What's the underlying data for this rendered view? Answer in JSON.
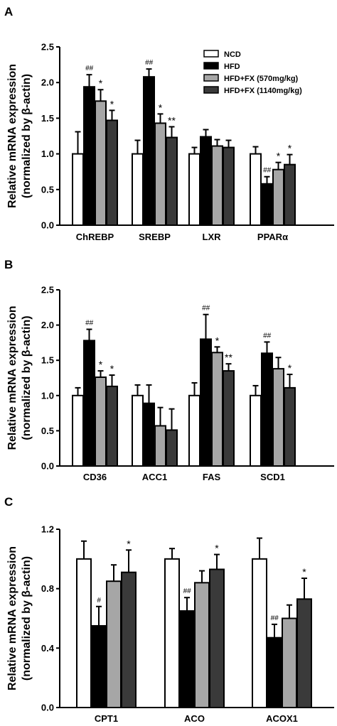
{
  "legend": [
    {
      "name": "NCD",
      "color": "#ffffff"
    },
    {
      "name": "HFD",
      "color": "#000000"
    },
    {
      "name": "HFD+FX (570mg/kg)",
      "color": "#a6a6a6"
    },
    {
      "name": "HFD+FX (1140mg/kg)",
      "color": "#3a3a3a"
    }
  ],
  "ylabel_line1": "Relative mRNA expression",
  "ylabel_line2": "(normalized by β-actin)",
  "chart_data": [
    {
      "panel": "A",
      "type": "bar",
      "categories": [
        "ChREBP",
        "SREBP",
        "LXR",
        "PPARα"
      ],
      "ylim": [
        0,
        2.5
      ],
      "yticks": [
        "0.0",
        "0.5",
        "1.0",
        "1.5",
        "2.0",
        "2.5"
      ],
      "ytick_values": [
        0,
        0.5,
        1.0,
        1.5,
        2.0,
        2.5
      ],
      "series": [
        {
          "name": "NCD",
          "values": [
            1.0,
            1.0,
            1.0,
            1.0
          ],
          "errors": [
            0.31,
            0.19,
            0.09,
            0.1
          ],
          "labels": [
            "",
            "",
            "",
            ""
          ]
        },
        {
          "name": "HFD",
          "values": [
            1.94,
            2.08,
            1.24,
            0.58
          ],
          "errors": [
            0.17,
            0.11,
            0.1,
            0.1
          ],
          "labels": [
            "##",
            "##",
            "",
            "##"
          ]
        },
        {
          "name": "HFD+FX (570mg/kg)",
          "values": [
            1.74,
            1.43,
            1.11,
            0.78
          ],
          "errors": [
            0.16,
            0.13,
            0.09,
            0.1
          ],
          "labels": [
            "*",
            "*",
            "",
            "*"
          ]
        },
        {
          "name": "HFD+FX (1140mg/kg)",
          "values": [
            1.47,
            1.23,
            1.09,
            0.85
          ],
          "errors": [
            0.14,
            0.15,
            0.1,
            0.14
          ],
          "labels": [
            "*",
            "**",
            "",
            "*"
          ]
        }
      ],
      "legend_position": "top-right"
    },
    {
      "panel": "B",
      "type": "bar",
      "categories": [
        "CD36",
        "ACC1",
        "FAS",
        "SCD1"
      ],
      "ylim": [
        0,
        2.5
      ],
      "yticks": [
        "0.0",
        "0.5",
        "1.0",
        "1.5",
        "2.0",
        "2.5"
      ],
      "ytick_values": [
        0,
        0.5,
        1.0,
        1.5,
        2.0,
        2.5
      ],
      "series": [
        {
          "name": "NCD",
          "values": [
            1.0,
            1.0,
            1.0,
            1.0
          ],
          "errors": [
            0.11,
            0.15,
            0.18,
            0.14
          ],
          "labels": [
            "",
            "",
            "",
            ""
          ]
        },
        {
          "name": "HFD",
          "values": [
            1.78,
            0.89,
            1.8,
            1.6
          ],
          "errors": [
            0.16,
            0.26,
            0.35,
            0.16
          ],
          "labels": [
            "##",
            "",
            "##",
            "##"
          ]
        },
        {
          "name": "HFD+FX (570mg/kg)",
          "values": [
            1.26,
            0.57,
            1.61,
            1.38
          ],
          "errors": [
            0.09,
            0.26,
            0.08,
            0.16
          ],
          "labels": [
            "*",
            "",
            "*",
            ""
          ]
        },
        {
          "name": "HFD+FX (1140mg/kg)",
          "values": [
            1.13,
            0.51,
            1.35,
            1.11
          ],
          "errors": [
            0.16,
            0.3,
            0.1,
            0.19
          ],
          "labels": [
            "*",
            "",
            "**",
            "*"
          ]
        }
      ]
    },
    {
      "panel": "C",
      "type": "bar",
      "categories": [
        "CPT1",
        "ACO",
        "ACOX1"
      ],
      "ylim": [
        0,
        1.2
      ],
      "yticks": [
        "0.0",
        "0.4",
        "0.8",
        "1.2"
      ],
      "ytick_values": [
        0,
        0.4,
        0.8,
        1.2
      ],
      "series": [
        {
          "name": "NCD",
          "values": [
            1.0,
            1.0,
            1.0
          ],
          "errors": [
            0.12,
            0.07,
            0.14
          ],
          "labels": [
            "",
            "",
            ""
          ]
        },
        {
          "name": "HFD",
          "values": [
            0.55,
            0.65,
            0.47
          ],
          "errors": [
            0.13,
            0.09,
            0.09
          ],
          "labels": [
            "#",
            "##",
            "##"
          ]
        },
        {
          "name": "HFD+FX (570mg/kg)",
          "values": [
            0.85,
            0.84,
            0.6
          ],
          "errors": [
            0.11,
            0.08,
            0.09
          ],
          "labels": [
            "",
            "",
            ""
          ]
        },
        {
          "name": "HFD+FX (1140mg/kg)",
          "values": [
            0.91,
            0.93,
            0.73
          ],
          "errors": [
            0.15,
            0.1,
            0.14
          ],
          "labels": [
            "*",
            "*",
            "*"
          ]
        }
      ]
    }
  ]
}
